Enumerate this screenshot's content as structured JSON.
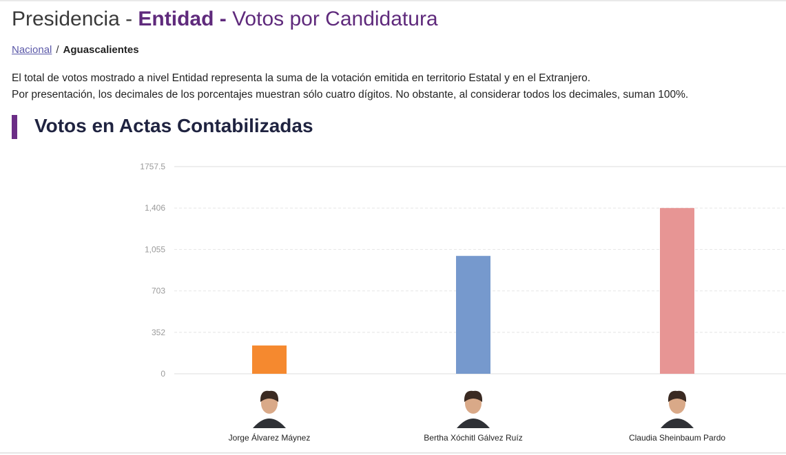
{
  "header": {
    "title_part1": "Presidencia - ",
    "title_part2": "Entidad - ",
    "title_part3": "Votos por Candidatura"
  },
  "breadcrumb": {
    "root_label": "Nacional",
    "separator": "/",
    "current_label": "Aguascalientes"
  },
  "notes": {
    "line1": "El total de votos mostrado a nivel Entidad representa la suma de la votación emitida en territorio Estatal y en el Extranjero.",
    "line2": "Por presentación, los decimales de los porcentajes muestran sólo cuatro dígitos. No obstante, al considerar todos los decimales, suman 100%."
  },
  "section": {
    "title": "Votos en Actas Contabilizadas"
  },
  "colors": {
    "title_accent": "#5f2a7c",
    "section_bar": "#6b2d86",
    "jorge": "#f5892f",
    "bertha": "#7699cd",
    "claudia": "#e79594"
  },
  "chart_data": {
    "type": "bar",
    "categories": [
      "Jorge Álvarez Máynez",
      "Bertha Xóchitl Gálvez Ruíz",
      "Claudia Sheinbaum Pardo"
    ],
    "values": [
      240,
      1000,
      1406
    ],
    "colors": [
      "#f5892f",
      "#7699cd",
      "#e79594"
    ],
    "yticks": [
      "0",
      "352",
      "703",
      "1,055",
      "1,406",
      "1757.5"
    ],
    "ytick_values": [
      0,
      351.5,
      703,
      1054.5,
      1406,
      1757.5
    ],
    "ylim": [
      0,
      1757.5
    ],
    "grid": true,
    "category_icons": [
      "candidate-photo",
      "candidate-photo",
      "candidate-photo"
    ]
  }
}
